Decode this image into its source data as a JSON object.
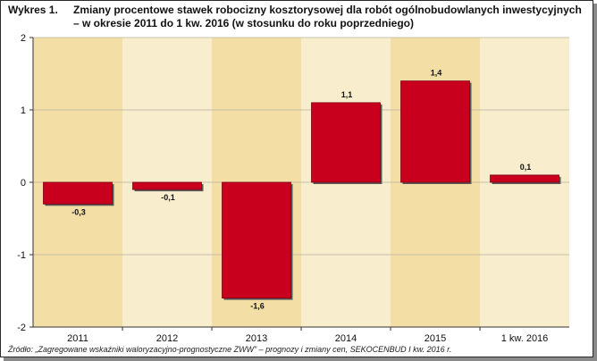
{
  "title": {
    "label": "Wykres 1.",
    "line1": "Zmiany procentowe stawek robocizny kosztorysowej dla robót ogólnobudowlanych inwestycyjnych",
    "line2": "– w okresie 2011 do 1 kw. 2016 (w stosunku do roku poprzedniego)"
  },
  "source": "Źródło: „Zagregowane wskaźniki waloryzacyjno-prognostyczne ZWW” – prognozy i zmiany cen, SEKOCENBUD I kw. 2016 r.",
  "colors": {
    "bar": "#c8001e",
    "band_dark": "#f3dea6",
    "band_light": "#f8edcd",
    "grid": "#b8b0a0"
  },
  "chart_data": {
    "type": "bar",
    "categories": [
      "2011",
      "2012",
      "2013",
      "2014",
      "2015",
      "1 kw. 2016"
    ],
    "values": [
      -0.3,
      -0.1,
      -1.6,
      1.1,
      1.4,
      0.1
    ],
    "data_labels": [
      "-0,3",
      "-0,1",
      "-1,6",
      "1,1",
      "1,4",
      "0,1"
    ],
    "ylim": [
      -2,
      2
    ],
    "yticks": [
      2,
      1,
      0,
      -1,
      -2
    ],
    "ytick_labels": [
      "2",
      "1",
      "0",
      "-1",
      "-2"
    ],
    "grid": true,
    "legend": "none"
  }
}
